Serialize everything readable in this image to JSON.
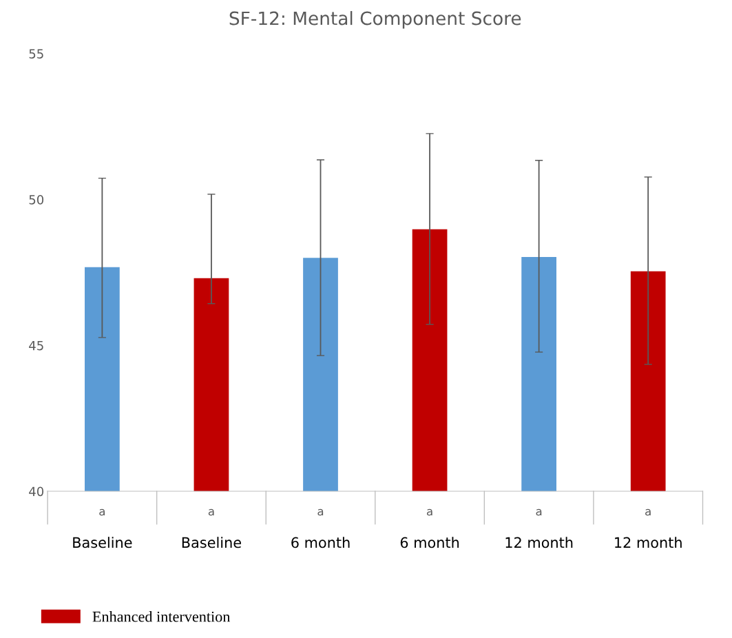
{
  "chart_data": {
    "type": "bar",
    "title": "SF-12: Mental Component Score",
    "categories": [
      "Baseline",
      "Baseline",
      "6 month",
      "6 month",
      "12 month",
      "12 month"
    ],
    "series": [
      {
        "color": "#5b9bd5",
        "values": [
          47.68,
          null,
          48.0,
          null,
          48.03,
          null
        ],
        "errors": [
          [
            45.27,
            50.73
          ],
          null,
          [
            44.65,
            51.36
          ],
          null,
          [
            44.77,
            51.34
          ],
          null
        ]
      },
      {
        "name": "Enhanced intervention",
        "color": "#c00000",
        "values": [
          null,
          47.3,
          null,
          48.98,
          null,
          47.54
        ],
        "errors": [
          null,
          [
            46.43,
            50.18
          ],
          null,
          [
            45.72,
            52.26
          ],
          null,
          [
            44.35,
            50.77
          ]
        ]
      }
    ],
    "annotations": [
      "a",
      "a",
      "a",
      "a",
      "a",
      "a"
    ],
    "ylim": [
      40,
      55
    ],
    "yticks": [
      40,
      45,
      50,
      55
    ],
    "grid": false,
    "legend": "bottom left"
  }
}
